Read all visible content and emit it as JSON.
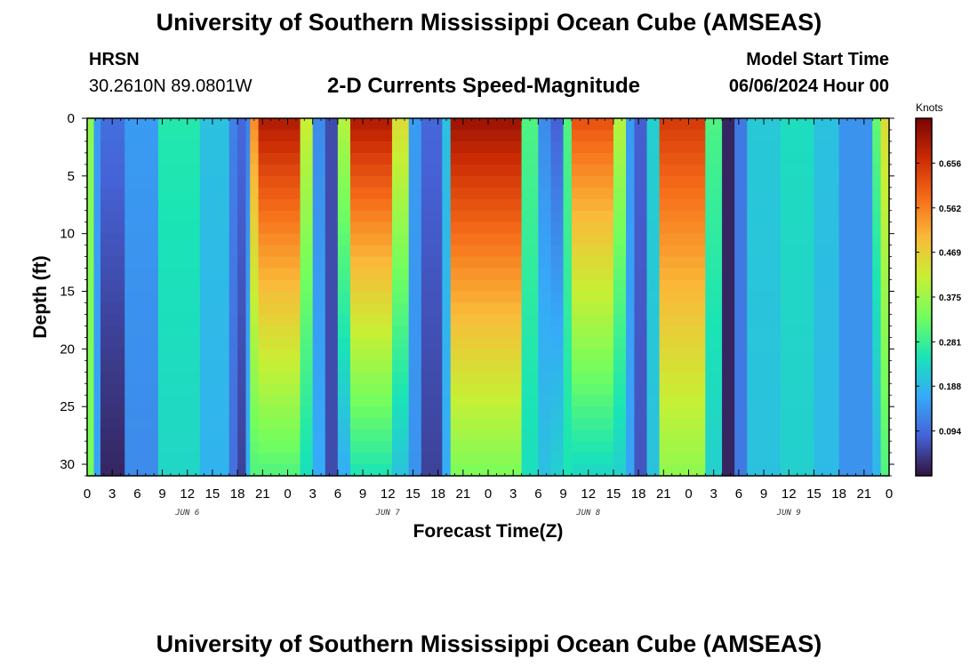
{
  "header": {
    "title": "University of Southern Mississippi Ocean Cube (AMSEAS)",
    "station": "HRSN",
    "coords": "30.2610N  89.0801W",
    "subtitle": "2-D Currents Speed-Magnitude",
    "model_start_label": "Model Start Time",
    "model_start_value": "06/06/2024 Hour 00"
  },
  "footer": {
    "title": "University of Southern Mississippi Ocean Cube (AMSEAS)"
  },
  "colors": {
    "colormap": [
      "#30123b",
      "#4662d7",
      "#36aaf9",
      "#1ae4b6",
      "#72fe5e",
      "#c8ef34",
      "#faba39",
      "#f66b19",
      "#ca2a04",
      "#7a0403"
    ]
  },
  "chart_data": {
    "type": "heatmap",
    "title": "2-D Currents Speed-Magnitude",
    "xlabel": "Forecast Time(Z)",
    "ylabel": "Depth (ft)",
    "x_unit": "hours from 06/06/2024 00Z",
    "xlim": [
      0,
      96
    ],
    "ylim": [
      0,
      31
    ],
    "x_tick_values": [
      0,
      3,
      6,
      9,
      12,
      15,
      18,
      21,
      24,
      27,
      30,
      33,
      36,
      39,
      42,
      45,
      48,
      51,
      54,
      57,
      60,
      63,
      66,
      69,
      72,
      75,
      78,
      81,
      84,
      87,
      90,
      93,
      96
    ],
    "x_tick_labels": [
      "0",
      "3",
      "6",
      "9",
      "12",
      "15",
      "18",
      "21",
      "0",
      "3",
      "6",
      "9",
      "12",
      "15",
      "18",
      "21",
      "0",
      "3",
      "6",
      "9",
      "12",
      "15",
      "18",
      "21",
      "0",
      "3",
      "6",
      "9",
      "12",
      "15",
      "18",
      "21",
      "0"
    ],
    "date_labels": [
      {
        "text": "JUN 6",
        "hour": 12
      },
      {
        "text": "JUN 7",
        "hour": 36
      },
      {
        "text": "JUN 8",
        "hour": 60
      },
      {
        "text": "JUN 9",
        "hour": 84
      }
    ],
    "y_tick_values": [
      0,
      5,
      10,
      15,
      20,
      25,
      30
    ],
    "y_tick_labels": [
      "0",
      "5",
      "10",
      "15",
      "20",
      "25",
      "30"
    ],
    "colorbar": {
      "unit": "Knots",
      "range": [
        0,
        0.75
      ],
      "tick_values": [
        0.094,
        0.188,
        0.281,
        0.375,
        0.469,
        0.562,
        0.656
      ],
      "tick_labels": [
        "0.094",
        "0.188",
        "0.281",
        "0.375",
        "0.469",
        "0.562",
        "0.656"
      ]
    },
    "bands": [
      {
        "start": 0,
        "end": 0.8,
        "surf": 0.36,
        "bottom": 0.34
      },
      {
        "start": 0.8,
        "end": 1.6,
        "surf": 0.15,
        "bottom": 0.16
      },
      {
        "start": 1.6,
        "end": 4.5,
        "surf": 0.1,
        "bottom": 0.02
      },
      {
        "start": 4.5,
        "end": 8.5,
        "surf": 0.15,
        "bottom": 0.13
      },
      {
        "start": 8.5,
        "end": 13.5,
        "surf": 0.26,
        "bottom": 0.23
      },
      {
        "start": 13.5,
        "end": 17,
        "surf": 0.2,
        "bottom": 0.18
      },
      {
        "start": 17,
        "end": 18,
        "surf": 0.12,
        "bottom": 0.1
      },
      {
        "start": 18,
        "end": 19,
        "surf": 0.09,
        "bottom": 0.05
      },
      {
        "start": 19,
        "end": 19.5,
        "surf": 0.12,
        "bottom": 0.18
      },
      {
        "start": 19.5,
        "end": 20.5,
        "surf": 0.55,
        "bottom": 0.3
      },
      {
        "start": 20.5,
        "end": 25.5,
        "surf": 0.7,
        "bottom": 0.3
      },
      {
        "start": 25.5,
        "end": 27,
        "surf": 0.42,
        "bottom": 0.24
      },
      {
        "start": 27,
        "end": 28.5,
        "surf": 0.13,
        "bottom": 0.17
      },
      {
        "start": 28.5,
        "end": 30,
        "surf": 0.06,
        "bottom": 0.06
      },
      {
        "start": 30,
        "end": 31.5,
        "surf": 0.4,
        "bottom": 0.17
      },
      {
        "start": 31.5,
        "end": 36.5,
        "surf": 0.7,
        "bottom": 0.25
      },
      {
        "start": 36.5,
        "end": 38.5,
        "surf": 0.45,
        "bottom": 0.2
      },
      {
        "start": 38.5,
        "end": 40,
        "surf": 0.15,
        "bottom": 0.14
      },
      {
        "start": 40,
        "end": 42.5,
        "surf": 0.09,
        "bottom": 0.05
      },
      {
        "start": 42.5,
        "end": 43.5,
        "surf": 0.2,
        "bottom": 0.17
      },
      {
        "start": 43.5,
        "end": 52,
        "surf": 0.72,
        "bottom": 0.34
      },
      {
        "start": 52,
        "end": 54,
        "surf": 0.3,
        "bottom": 0.24
      },
      {
        "start": 54,
        "end": 55.5,
        "surf": 0.13,
        "bottom": 0.2
      },
      {
        "start": 55.5,
        "end": 57,
        "surf": 0.08,
        "bottom": 0.22
      },
      {
        "start": 57,
        "end": 58,
        "surf": 0.3,
        "bottom": 0.25
      },
      {
        "start": 58,
        "end": 63,
        "surf": 0.62,
        "bottom": 0.23
      },
      {
        "start": 63,
        "end": 64.5,
        "surf": 0.4,
        "bottom": 0.22
      },
      {
        "start": 64.5,
        "end": 65.5,
        "surf": 0.15,
        "bottom": 0.16
      },
      {
        "start": 65.5,
        "end": 67,
        "surf": 0.08,
        "bottom": 0.07
      },
      {
        "start": 67,
        "end": 68.5,
        "surf": 0.22,
        "bottom": 0.2
      },
      {
        "start": 68.5,
        "end": 74,
        "surf": 0.65,
        "bottom": 0.36
      },
      {
        "start": 74,
        "end": 76,
        "surf": 0.3,
        "bottom": 0.22
      },
      {
        "start": 76,
        "end": 77.5,
        "surf": 0.02,
        "bottom": 0.02
      },
      {
        "start": 77.5,
        "end": 79,
        "surf": 0.11,
        "bottom": 0.11
      },
      {
        "start": 79,
        "end": 83,
        "surf": 0.21,
        "bottom": 0.2
      },
      {
        "start": 83,
        "end": 87,
        "surf": 0.24,
        "bottom": 0.22
      },
      {
        "start": 87,
        "end": 90,
        "surf": 0.2,
        "bottom": 0.19
      },
      {
        "start": 90,
        "end": 94,
        "surf": 0.14,
        "bottom": 0.14
      },
      {
        "start": 94,
        "end": 95,
        "surf": 0.32,
        "bottom": 0.18
      },
      {
        "start": 95,
        "end": 96,
        "surf": 0.45,
        "bottom": 0.3
      }
    ]
  }
}
